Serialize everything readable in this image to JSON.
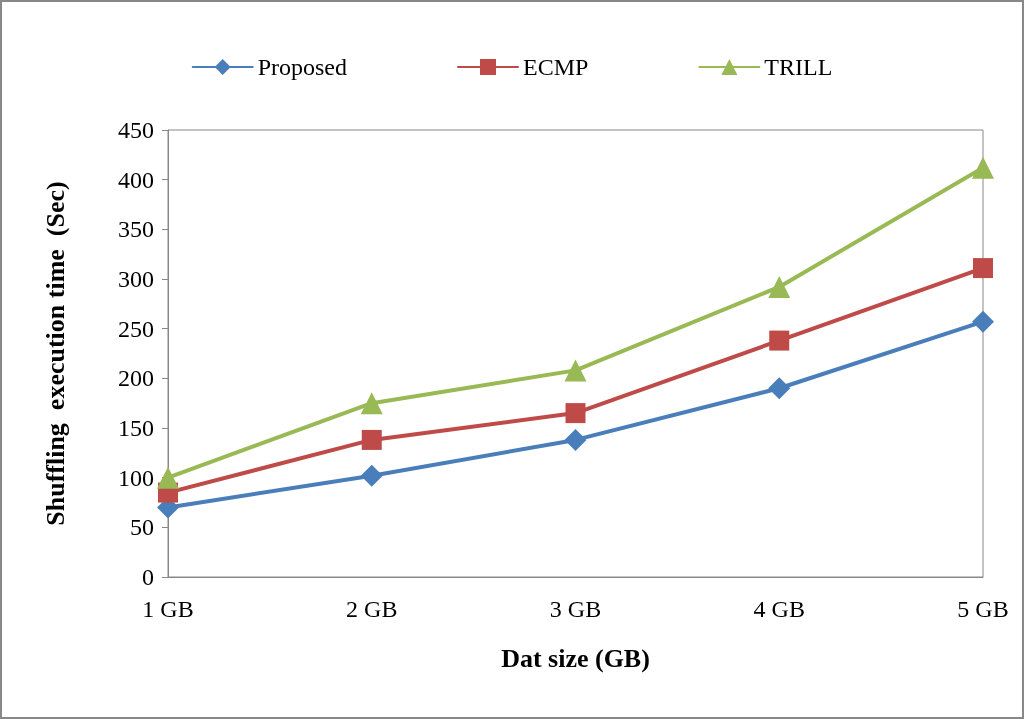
{
  "chart_data": {
    "type": "line",
    "xlabel": "Dat size (GB)",
    "ylabel": "Shuffling  execution time  (Sec)",
    "categories": [
      "1 GB",
      "2 GB",
      "3 GB",
      "4 GB",
      "5 GB"
    ],
    "series": [
      {
        "name": "Proposed",
        "color": "#4a7ebb",
        "marker": "diamond",
        "values": [
          70,
          102,
          138,
          190,
          257
        ]
      },
      {
        "name": "ECMP",
        "color": "#be4b48",
        "marker": "square",
        "values": [
          85,
          138,
          165,
          238,
          311
        ]
      },
      {
        "name": "TRILL",
        "color": "#98b954",
        "marker": "triangle",
        "values": [
          100,
          175,
          208,
          292,
          412
        ]
      }
    ],
    "ylim": [
      0,
      450
    ],
    "yticks": [
      0,
      50,
      100,
      150,
      200,
      250,
      300,
      350,
      400,
      450
    ],
    "grid": false,
    "legend": "top",
    "line_style": "solid"
  }
}
